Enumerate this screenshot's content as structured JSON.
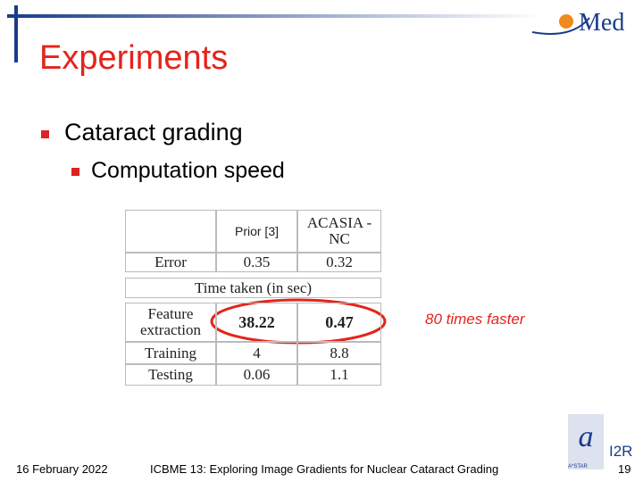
{
  "header": {
    "title": "Experiments",
    "logo": "Med"
  },
  "bullets": {
    "main": "Cataract grading",
    "sub": "Computation speed"
  },
  "table": {
    "header": [
      "Prior [3]",
      "ACASIA -NC"
    ],
    "rows_top": [
      [
        "Error",
        "0.35",
        "0.32"
      ]
    ],
    "section": "Time taken (in sec)",
    "rows_bottom": [
      [
        "Feature extraction",
        "38.22",
        "0.47"
      ],
      [
        "Training",
        "4",
        "8.8"
      ],
      [
        "Testing",
        "0.06",
        "1.1"
      ]
    ]
  },
  "annotation": "80 times faster",
  "footer": {
    "date": "16 February 2022",
    "text": "ICBME 13: Exploring Image Gradients for Nuclear Cataract Grading",
    "page": "19",
    "logo_main": "I2R",
    "logo_sub": "A*STAR"
  }
}
